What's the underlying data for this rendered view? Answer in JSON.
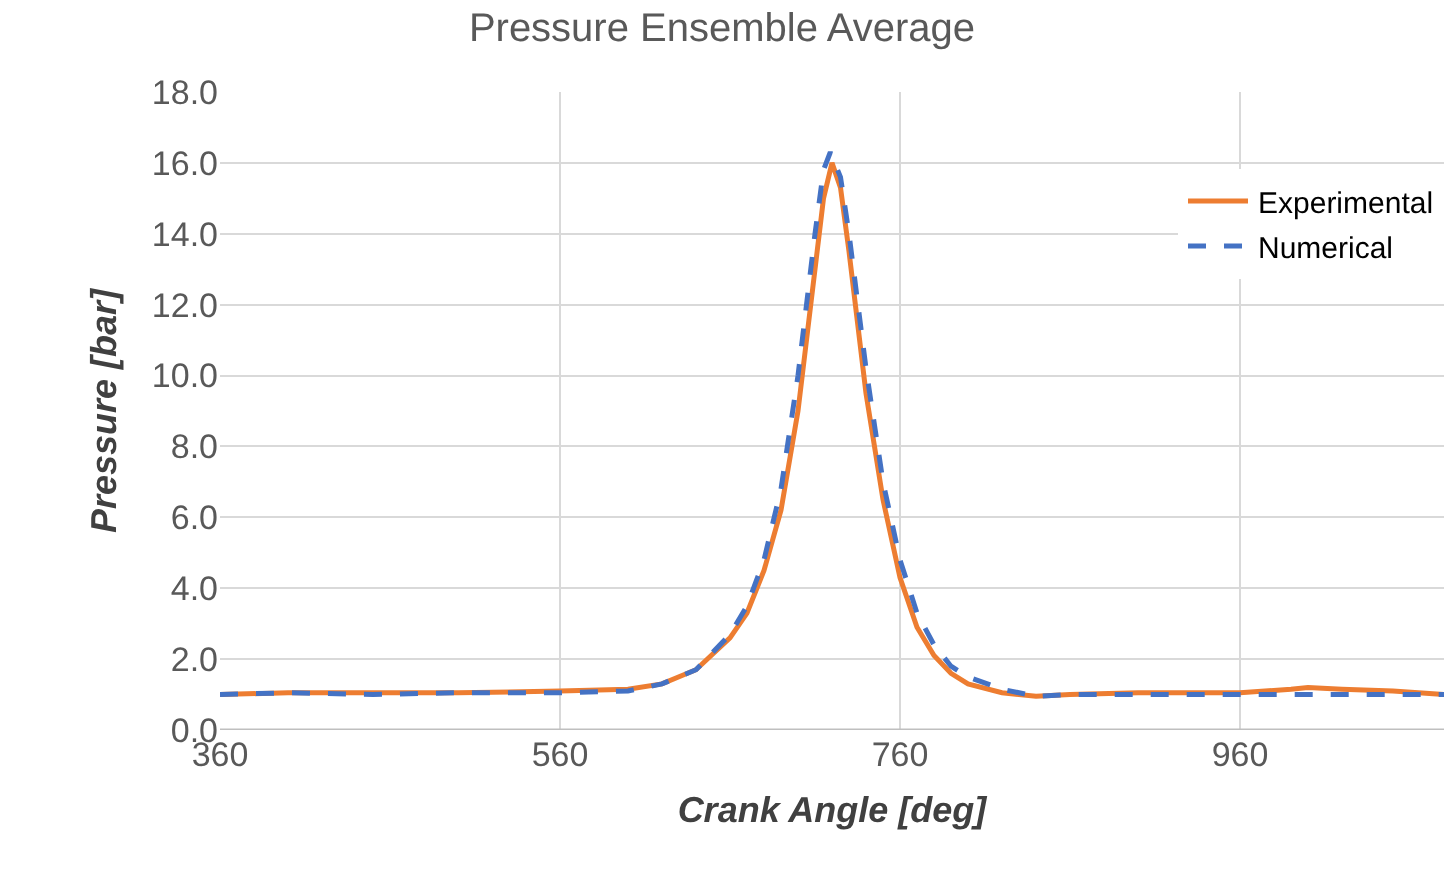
{
  "chart_data": {
    "type": "line",
    "title": "Pressure Ensemble Average",
    "xlabel": "Crank Angle [deg]",
    "ylabel": "Pressure [bar]",
    "xlim": [
      360,
      1080
    ],
    "xticks": [
      360,
      560,
      760,
      960
    ],
    "ylim": [
      0,
      18
    ],
    "yticks": [
      {
        "value": 0,
        "label": "0.0"
      },
      {
        "value": 2,
        "label": "2.0"
      },
      {
        "value": 4,
        "label": "4.0"
      },
      {
        "value": 6,
        "label": "6.0"
      },
      {
        "value": 8,
        "label": "8.0"
      },
      {
        "value": 10,
        "label": "10.0"
      },
      {
        "value": 12,
        "label": "12.0"
      },
      {
        "value": 14,
        "label": "14.0"
      },
      {
        "value": 16,
        "label": "16.0"
      },
      {
        "value": 18,
        "label": "18.0"
      }
    ],
    "grid": true,
    "legend": "top right",
    "marker": "none",
    "series": [
      {
        "name": "Experimental",
        "color": "#ed7d31",
        "line_style": "solid",
        "x": [
          360,
          400,
          450,
          500,
          560,
          600,
          620,
          640,
          660,
          670,
          680,
          690,
          700,
          710,
          715,
          720,
          725,
          730,
          740,
          750,
          760,
          770,
          780,
          790,
          800,
          820,
          840,
          860,
          900,
          960,
          990,
          1000,
          1020,
          1050,
          1080
        ],
        "values": [
          1.0,
          1.05,
          1.05,
          1.05,
          1.1,
          1.15,
          1.3,
          1.7,
          2.6,
          3.3,
          4.5,
          6.2,
          9.0,
          13.0,
          15.0,
          16.0,
          15.3,
          13.5,
          9.5,
          6.5,
          4.3,
          2.9,
          2.1,
          1.6,
          1.3,
          1.05,
          0.95,
          1.0,
          1.05,
          1.05,
          1.15,
          1.2,
          1.15,
          1.1,
          1.0
        ]
      },
      {
        "name": "Numerical",
        "color": "#4472c4",
        "line_style": "dashed",
        "x": [
          360,
          400,
          450,
          500,
          560,
          600,
          620,
          640,
          660,
          670,
          680,
          690,
          700,
          710,
          715,
          719,
          725,
          730,
          740,
          750,
          760,
          770,
          780,
          790,
          800,
          820,
          840,
          860,
          900,
          960,
          1000,
          1040,
          1080
        ],
        "values": [
          1.0,
          1.05,
          1.0,
          1.05,
          1.05,
          1.1,
          1.3,
          1.7,
          2.7,
          3.5,
          4.8,
          6.8,
          10.0,
          14.0,
          15.8,
          16.3,
          15.6,
          14.0,
          10.2,
          7.0,
          4.8,
          3.3,
          2.4,
          1.8,
          1.5,
          1.15,
          0.95,
          1.0,
          1.0,
          1.0,
          1.0,
          1.0,
          1.0
        ]
      }
    ]
  }
}
